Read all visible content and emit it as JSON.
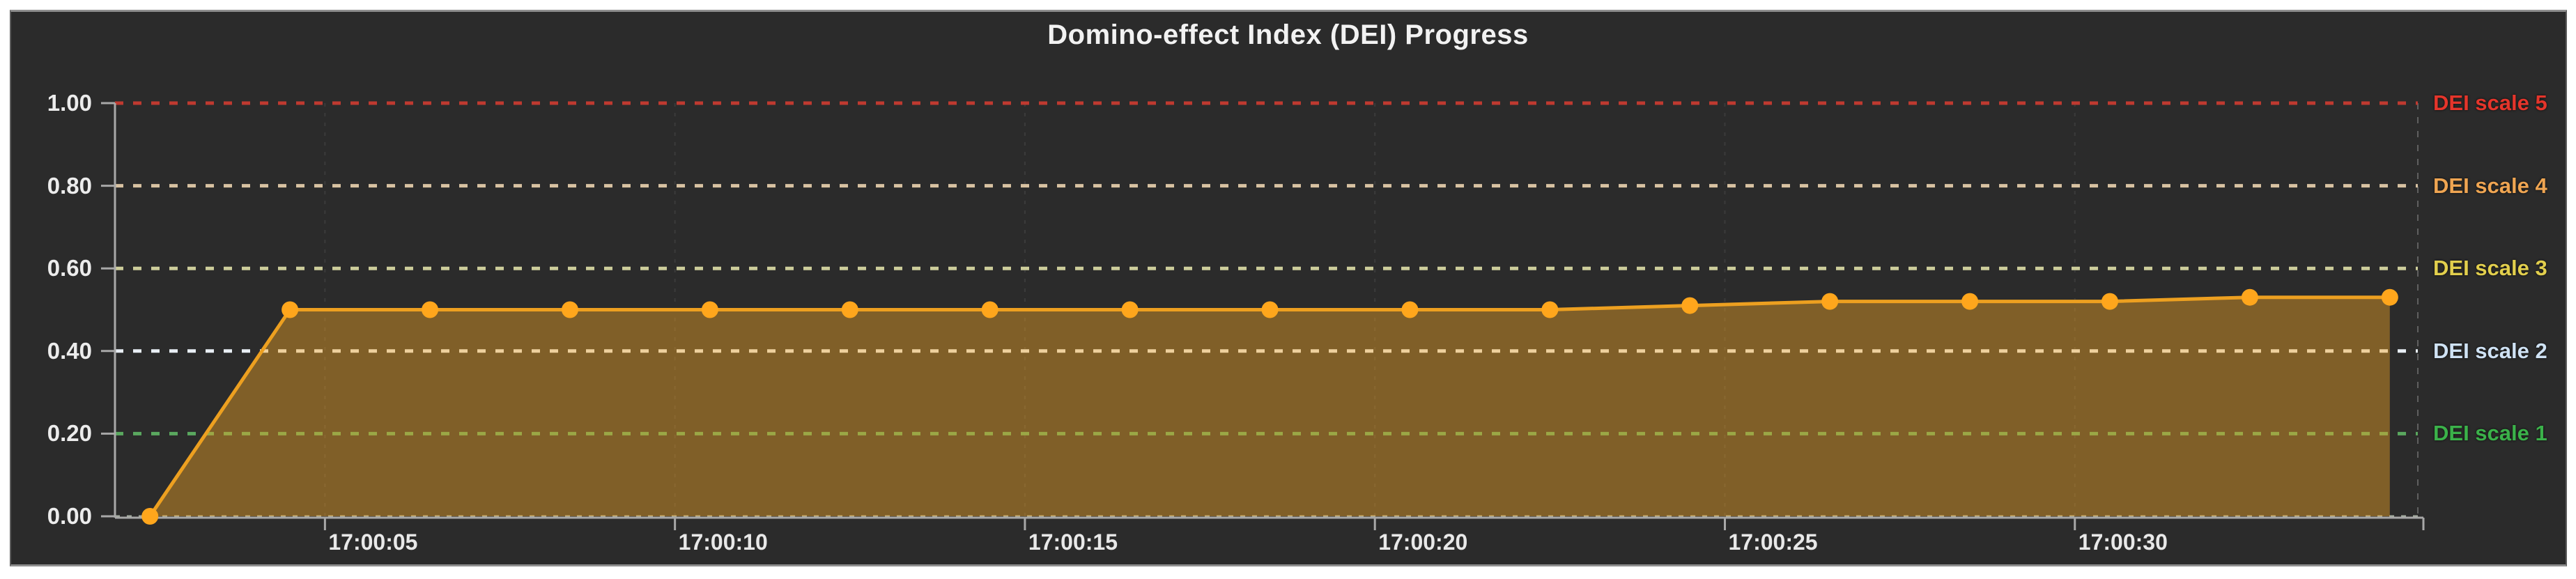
{
  "title": "Domino-effect Index (DEI) Progress",
  "panel": {
    "background": "#2b2b2b",
    "page_background": "#ffffff"
  },
  "chart_data": {
    "type": "area",
    "title": "Domino-effect Index (DEI) Progress",
    "grid": true,
    "legend_position": "right-threshold-labels",
    "x_axis": {
      "tick_labels": [
        "17:00:05",
        "17:00:10",
        "17:00:15",
        "17:00:20",
        "17:00:25",
        "17:00:30"
      ],
      "tick_seconds_after_1700": [
        5,
        10,
        15,
        20,
        25,
        30
      ],
      "range_seconds_after_1700": [
        2.0,
        34.9
      ]
    },
    "y_axis": {
      "tick_labels": [
        "1.00",
        "0.80",
        "0.60",
        "0.40",
        "0.20",
        "0.00"
      ],
      "tick_values": [
        1.0,
        0.8,
        0.6,
        0.4,
        0.2,
        0.0
      ],
      "ylim": [
        0.0,
        1.0
      ]
    },
    "series": [
      {
        "name": "DEI",
        "color": "#eda020",
        "fill_color": "rgba(245,166,35,0.42)",
        "point_color": "#ffa61c",
        "points_seconds_after_1700": [
          2.5,
          4.5,
          6.5,
          8.5,
          10.5,
          12.5,
          14.5,
          16.5,
          18.5,
          20.5,
          22.5,
          24.5,
          26.5,
          28.5,
          30.5,
          32.5,
          34.5
        ],
        "values": [
          0.0,
          0.5,
          0.5,
          0.5,
          0.5,
          0.5,
          0.5,
          0.5,
          0.5,
          0.5,
          0.5,
          0.51,
          0.52,
          0.52,
          0.52,
          0.53,
          0.53
        ]
      }
    ],
    "thresholds": [
      {
        "label": "DEI scale 5",
        "value": 1.0,
        "line_color": "#bf3a30",
        "label_color": "#e5352b"
      },
      {
        "label": "DEI scale 4",
        "value": 0.8,
        "line_color": "#d8c2a2",
        "label_color": "#efa552"
      },
      {
        "label": "DEI scale 3",
        "value": 0.6,
        "line_color": "#cdcd9b",
        "label_color": "#e2cf4d"
      },
      {
        "label": "DEI scale 2",
        "value": 0.4,
        "line_color": "#e8eef4",
        "label_color": "#cfe2f4"
      },
      {
        "label": "DEI scale 1",
        "value": 0.2,
        "line_color": "#5aa85f",
        "label_color": "#3bb24a"
      }
    ],
    "zero_gridline_color": "rgba(207,217,200,0.75)",
    "vertical_gridline_color": "rgba(255,255,255,0.08)",
    "axis_color": "#a8a8a8"
  }
}
